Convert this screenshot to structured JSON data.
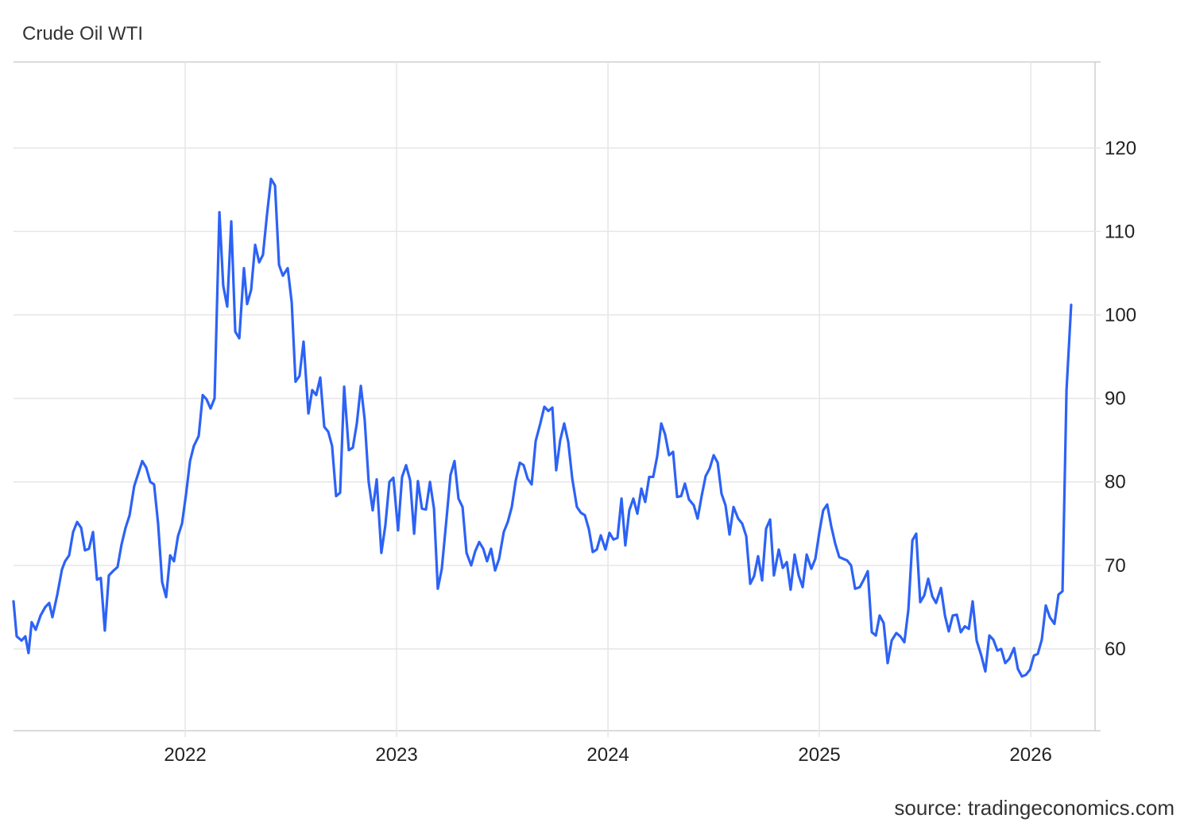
{
  "chart_data": {
    "type": "line",
    "title": "Crude Oil WTI",
    "source": "source: tradingeconomics.com",
    "color": "#2c62f6",
    "grid": true,
    "xlim": [
      2021.188,
      2026.304
    ],
    "xticks": [
      2022,
      2023,
      2024,
      2025,
      2026
    ],
    "ylim": [
      50.2,
      130.3
    ],
    "yticks": [
      60,
      70,
      80,
      90,
      100,
      110,
      120
    ],
    "x": [
      2021.188,
      2021.203,
      2021.226,
      2021.244,
      2021.259,
      2021.274,
      2021.293,
      2021.316,
      2021.338,
      2021.357,
      2021.372,
      2021.395,
      2021.417,
      2021.432,
      2021.451,
      2021.47,
      2021.489,
      2021.508,
      2021.526,
      2021.545,
      2021.564,
      2021.583,
      2021.601,
      2021.62,
      2021.639,
      2021.658,
      2021.68,
      2021.699,
      2021.718,
      2021.737,
      2021.759,
      2021.778,
      2021.797,
      2021.816,
      2021.835,
      2021.853,
      2021.872,
      2021.891,
      2021.91,
      2021.929,
      2021.947,
      2021.966,
      2021.985,
      2022.004,
      2022.023,
      2022.041,
      2022.064,
      2022.083,
      2022.101,
      2022.12,
      2022.139,
      2022.162,
      2022.18,
      2022.199,
      2022.218,
      2022.237,
      2022.256,
      2022.278,
      2022.293,
      2022.312,
      2022.331,
      2022.35,
      2022.368,
      2022.387,
      2022.406,
      2022.425,
      2022.444,
      2022.462,
      2022.485,
      2022.504,
      2022.522,
      2022.541,
      2022.56,
      2022.583,
      2022.601,
      2022.62,
      2022.639,
      2022.658,
      2022.677,
      2022.695,
      2022.714,
      2022.733,
      2022.752,
      2022.774,
      2022.793,
      2022.812,
      2022.831,
      2022.849,
      2022.868,
      2022.887,
      2022.906,
      2022.928,
      2022.947,
      2022.966,
      2022.985,
      2023.007,
      2023.026,
      2023.045,
      2023.064,
      2023.083,
      2023.101,
      2023.12,
      2023.139,
      2023.158,
      2023.177,
      2023.195,
      2023.214,
      2023.237,
      2023.255,
      2023.274,
      2023.293,
      2023.312,
      2023.331,
      2023.353,
      2023.372,
      2023.391,
      2023.41,
      2023.428,
      2023.447,
      2023.466,
      2023.485,
      2023.507,
      2023.526,
      2023.545,
      2023.564,
      2023.583,
      2023.601,
      2023.62,
      2023.639,
      2023.658,
      2023.68,
      2023.699,
      2023.718,
      2023.737,
      2023.755,
      2023.774,
      2023.793,
      2023.812,
      2023.831,
      2023.853,
      2023.872,
      2023.891,
      2023.91,
      2023.928,
      2023.947,
      2023.966,
      2023.988,
      2024.007,
      2024.026,
      2024.045,
      2024.064,
      2024.082,
      2024.101,
      2024.12,
      2024.139,
      2024.158,
      2024.176,
      2024.195,
      2024.214,
      2024.233,
      2024.252,
      2024.27,
      2024.289,
      2024.308,
      2024.327,
      2024.346,
      2024.364,
      2024.383,
      2024.406,
      2024.424,
      2024.443,
      2024.462,
      2024.481,
      2024.5,
      2024.519,
      2024.537,
      2024.556,
      2024.575,
      2024.594,
      2024.616,
      2024.635,
      2024.654,
      2024.673,
      2024.691,
      2024.71,
      2024.729,
      2024.748,
      2024.767,
      2024.785,
      2024.808,
      2024.827,
      2024.846,
      2024.864,
      2024.883,
      2024.902,
      2024.921,
      2024.94,
      2024.962,
      2024.981,
      2025.0,
      2025.018,
      2025.037,
      2025.056,
      2025.075,
      2025.094,
      2025.112,
      2025.131,
      2025.15,
      2025.169,
      2025.191,
      2025.21,
      2025.229,
      2025.248,
      2025.267,
      2025.285,
      2025.304,
      2025.323,
      2025.342,
      2025.364,
      2025.383,
      2025.402,
      2025.421,
      2025.44,
      2025.458,
      2025.477,
      2025.496,
      2025.515,
      2025.534,
      2025.552,
      2025.575,
      2025.594,
      2025.612,
      2025.631,
      2025.65,
      2025.669,
      2025.688,
      2025.707,
      2025.725,
      2025.744,
      2025.766,
      2025.785,
      2025.804,
      2025.823,
      2025.842,
      2025.86,
      2025.879,
      2025.898,
      2025.921,
      2025.939,
      2025.958,
      2025.977,
      2025.996,
      2026.015,
      2026.033,
      2026.052,
      2026.071,
      2026.09,
      2026.112,
      2026.131,
      2026.15,
      2026.169,
      2026.191
    ],
    "values": [
      65.7,
      61.5,
      61,
      61.5,
      59.5,
      63.2,
      62.3,
      64,
      65,
      65.5,
      63.8,
      66.5,
      69.5,
      70.5,
      71.2,
      74,
      75.2,
      74.5,
      71.8,
      72,
      74,
      68.3,
      68.5,
      62.2,
      68.8,
      69.3,
      69.8,
      72.5,
      74.5,
      76,
      79.5,
      81,
      82.5,
      81.7,
      80,
      79.7,
      75,
      68,
      66.2,
      71.2,
      70.5,
      73.5,
      75,
      78.5,
      82.5,
      84.3,
      85.5,
      90.4,
      89.9,
      88.8,
      90,
      112.3,
      103.5,
      101,
      111.2,
      98,
      97.2,
      105.6,
      101.3,
      103,
      108.4,
      106.3,
      107.2,
      112,
      116.3,
      115.5,
      106,
      104.7,
      105.6,
      101.5,
      92,
      92.7,
      96.8,
      88.2,
      91,
      90.4,
      92.5,
      86.6,
      86,
      84.3,
      78.3,
      78.7,
      91.4,
      83.8,
      84.1,
      87,
      91.5,
      87.5,
      80,
      76.6,
      80.3,
      71.5,
      74.8,
      80,
      80.5,
      74.2,
      80.6,
      82,
      80.2,
      73.8,
      80.1,
      76.8,
      76.7,
      80,
      76.8,
      67.2,
      69.6,
      75.8,
      80.8,
      82.5,
      78,
      77,
      71.5,
      70,
      71.7,
      72.8,
      72,
      70.5,
      72,
      69.4,
      70.8,
      74,
      75.2,
      77,
      80.2,
      82.3,
      82,
      80.4,
      79.7,
      84.9,
      87,
      89,
      88.5,
      88.9,
      81.4,
      85,
      87,
      84.8,
      80.4,
      77,
      76.3,
      76,
      74.3,
      71.6,
      71.9,
      73.6,
      71.9,
      73.9,
      73.1,
      73.3,
      78,
      72.4,
      76.6,
      78,
      76.2,
      79.2,
      77.6,
      80.6,
      80.6,
      83.1,
      87,
      85.7,
      83.2,
      83.6,
      78.2,
      78.3,
      79.8,
      77.9,
      77.2,
      75.6,
      78.3,
      80.7,
      81.6,
      83.2,
      82.3,
      78.6,
      77.2,
      73.7,
      77,
      75.6,
      75,
      73.5,
      67.8,
      68.7,
      71.1,
      68.2,
      74.4,
      75.5,
      68.8,
      71.9,
      69.7,
      70.4,
      67.1,
      71.3,
      68.8,
      67.4,
      71.3,
      69.6,
      70.8,
      74,
      76.6,
      77.3,
      74.7,
      72.6,
      71,
      70.8,
      70.6,
      70,
      67.2,
      67.4,
      68.3,
      69.3,
      62,
      61.6,
      64,
      63.1,
      58.3,
      61,
      61.9,
      61.5,
      60.8,
      64.7,
      73,
      73.8,
      65.6,
      66.4,
      68.4,
      66.3,
      65.5,
      67.3,
      64,
      62.1,
      64,
      64.1,
      62,
      62.7,
      62.4,
      65.7,
      61,
      59.2,
      57.3,
      61.6,
      61.1,
      59.8,
      60,
      58.3,
      58.8,
      60.1,
      57.6,
      56.7,
      56.9,
      57.5,
      59.2,
      59.4,
      61.1,
      65.2,
      63.8,
      63,
      66.5,
      66.9,
      91,
      101.2
    ]
  }
}
